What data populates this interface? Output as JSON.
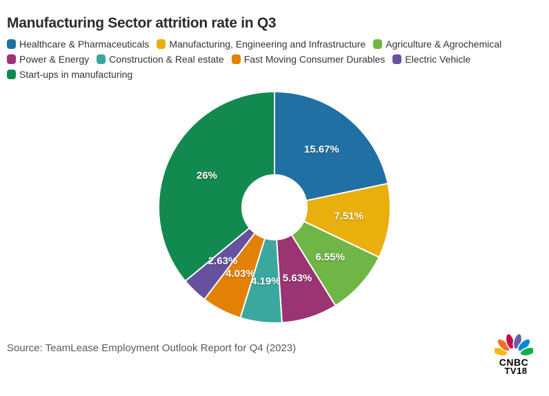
{
  "page": {
    "title": "Manufacturing Sector attrition rate in Q3",
    "source": "Source: TeamLease Employment Outlook Report for Q4 (2023)"
  },
  "logo": {
    "line1": "CNBC",
    "line2": "TV18",
    "feather_colors": [
      "#FCB711",
      "#F37021",
      "#CC004C",
      "#6460AA",
      "#0089D0",
      "#0DB14B"
    ]
  },
  "chart_data": {
    "type": "pie",
    "subtype": "donut",
    "title": "Manufacturing Sector attrition rate in Q3",
    "unit": "%",
    "start_angle_deg": 0,
    "direction": "clockwise",
    "inner_radius_ratio": 0.28,
    "label_color": "#ffffff",
    "legend_position": "top",
    "slices": [
      {
        "label": "Healthcare & Pharmaceuticals",
        "value": 15.67,
        "display": "15.67%",
        "color": "#2170a3"
      },
      {
        "label": "Manufacturing, Engineering and Infrastructure",
        "value": 7.51,
        "display": "7.51%",
        "color": "#e9af0d"
      },
      {
        "label": "Agriculture & Agrochemical",
        "value": 6.55,
        "display": "6.55%",
        "color": "#70b647"
      },
      {
        "label": "Power & Energy",
        "value": 5.63,
        "display": "5.63%",
        "color": "#9a3473"
      },
      {
        "label": "Construction & Real estate",
        "value": 4.19,
        "display": "4.19%",
        "color": "#3aa89f"
      },
      {
        "label": "Fast Moving Consumer Durables",
        "value": 4.03,
        "display": "4.03%",
        "color": "#e28105"
      },
      {
        "label": "Electric Vehicle",
        "value": 2.63,
        "display": "2.63%",
        "color": "#66519f"
      },
      {
        "label": "Start-ups in manufacturing",
        "value": 26,
        "display": "26%",
        "color": "#12894f"
      }
    ]
  }
}
